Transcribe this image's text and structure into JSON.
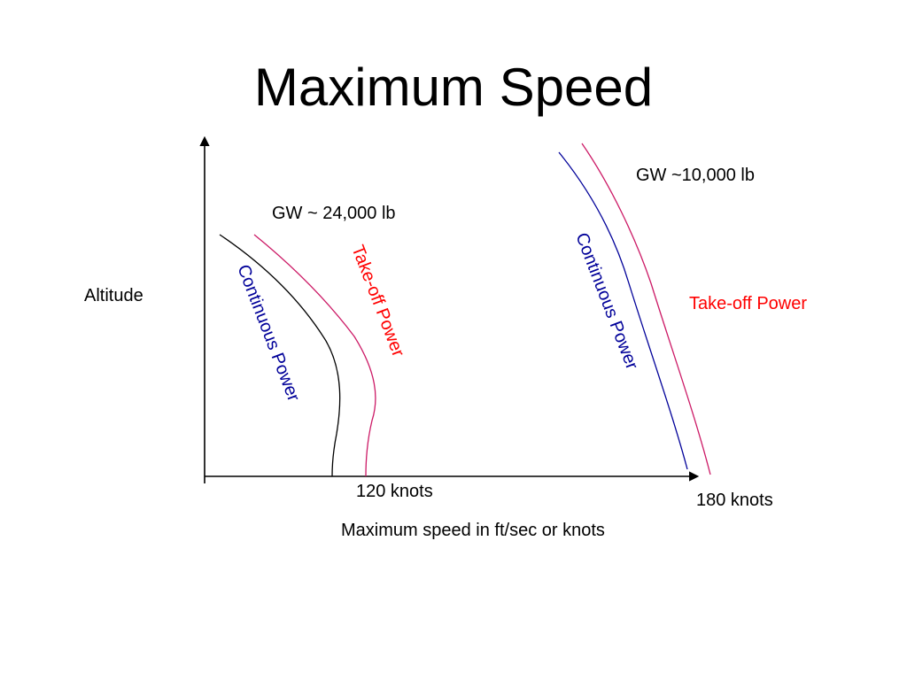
{
  "title": "Maximum Speed",
  "colors": {
    "text": "#000000",
    "takeoff": "#cc1a66",
    "takeoff_label": "#ff0000",
    "continuous": "#000099",
    "continuous_heavy": "#000000"
  },
  "axes": {
    "y_label": "Altitude",
    "x_label": "Maximum speed in ft/sec or knots"
  },
  "markers": {
    "speed_120": "120 knots",
    "speed_180": "180 knots"
  },
  "groups": {
    "heavy": {
      "weight_label": "GW ~ 24,000 lb",
      "continuous_label": "Continuous Power",
      "takeoff_label": "Take-off Power"
    },
    "light": {
      "weight_label": "GW ~10,000 lb",
      "continuous_label": "Continuous Power",
      "takeoff_label": "Take-off Power"
    }
  }
}
